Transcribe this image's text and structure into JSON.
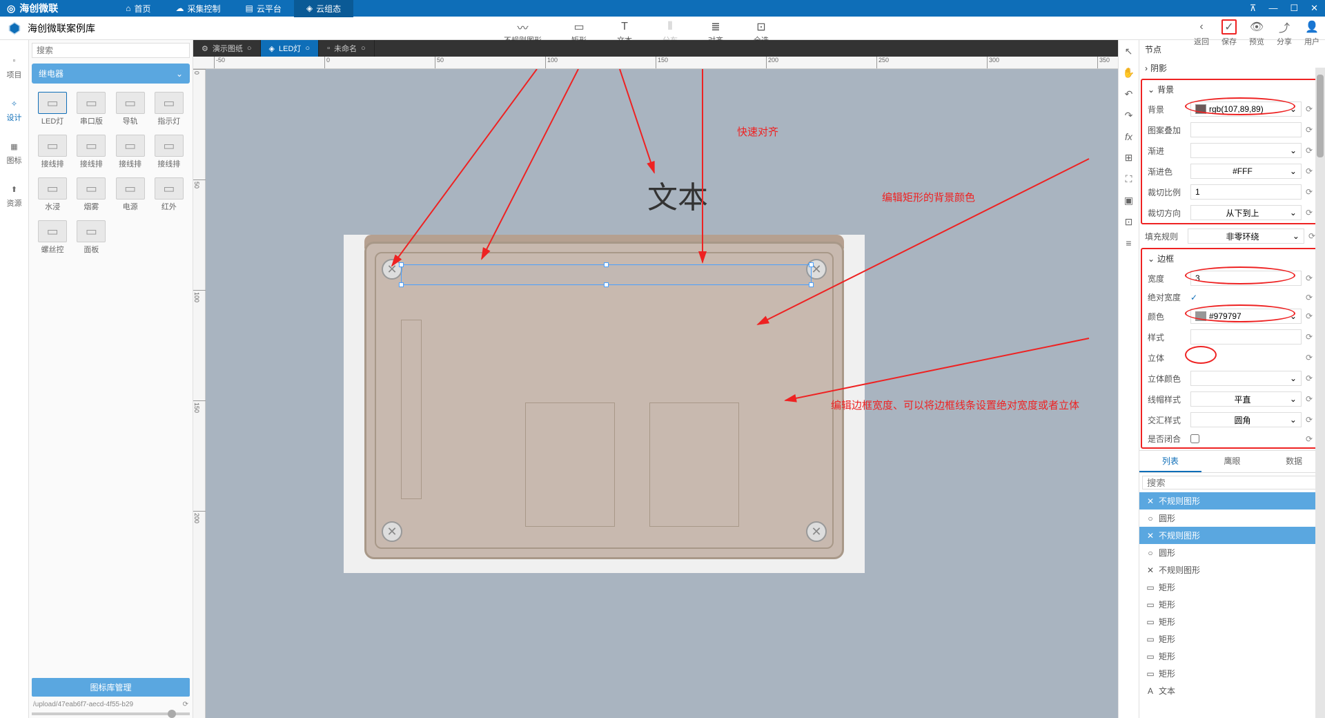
{
  "brand": "海创微联",
  "nav": [
    "首页",
    "采集控制",
    "云平台",
    "云组态"
  ],
  "nav_active": 3,
  "sub_title": "海创微联案例库",
  "left_items": [
    "项目",
    "设计",
    "图标",
    "资源"
  ],
  "left_active": 1,
  "search_placeholder": "搜索",
  "category": "继电器",
  "lib_items": [
    "LED灯",
    "串口版",
    "导轨",
    "指示灯",
    "接线排",
    "接线排",
    "接线排",
    "接线排",
    "水浸",
    "烟雾",
    "电源",
    "红外",
    "螺丝控",
    "面板"
  ],
  "lib_selected": 0,
  "lib_footer_btn": "图标库管理",
  "lib_path": "/upload/47eab6f7-aecd-4f55-b29",
  "tabs": [
    {
      "label": "演示图纸",
      "closable": true
    },
    {
      "label": "LED灯",
      "closable": true
    },
    {
      "label": "未命名",
      "closable": true
    }
  ],
  "tab_active": 1,
  "tools": [
    "不规则图形",
    "矩形",
    "文本",
    "分布",
    "对齐",
    "全选"
  ],
  "ruler_h": [
    "-50",
    "0",
    "50",
    "100",
    "150",
    "200",
    "250",
    "300",
    "350"
  ],
  "ruler_v": [
    "0",
    "50",
    "100",
    "150",
    "200"
  ],
  "text_element": "文本",
  "annot1": "快速对齐",
  "annot2": "编辑矩形的背景颜色",
  "annot3": "编辑边框宽度、可以将边框线条设置绝对宽度或者立体",
  "topright": [
    "返回",
    "保存",
    "预览",
    "分享",
    "用户"
  ],
  "topright_highlight": 1,
  "rp_node": "节点",
  "rp_shadow": "阴影",
  "rp_bg_section": "背景",
  "rp_bg": {
    "label": "背景",
    "value": "rgb(107,89,89)",
    "color": "#6b5959"
  },
  "rp_pattern": {
    "label": "图案叠加",
    "value": ""
  },
  "rp_gradient": {
    "label": "渐进",
    "value": ""
  },
  "rp_grad_color": {
    "label": "渐进色",
    "value": "#FFF"
  },
  "rp_crop_ratio": {
    "label": "裁切比例",
    "value": "1"
  },
  "rp_crop_dir": {
    "label": "裁切方向",
    "value": "从下到上"
  },
  "rp_fill_rule": {
    "label": "填充规则",
    "value": "非零环绕"
  },
  "rp_border_section": "边框",
  "rp_width": {
    "label": "宽度",
    "value": "3"
  },
  "rp_abs_width": {
    "label": "绝对宽度"
  },
  "rp_color": {
    "label": "颜色",
    "value": "#979797",
    "color": "#979797"
  },
  "rp_style": {
    "label": "样式",
    "value": ""
  },
  "rp_3d": {
    "label": "立体",
    "value": ""
  },
  "rp_3d_color": {
    "label": "立体颜色",
    "value": ""
  },
  "rp_cap": {
    "label": "线帽样式",
    "value": "平直"
  },
  "rp_join": {
    "label": "交汇样式",
    "value": "圆角"
  },
  "rp_closed": {
    "label": "是否闭合"
  },
  "rp_tabs": [
    "列表",
    "鹰眼",
    "数据"
  ],
  "rp_tab_active": 0,
  "layer_search": "搜索",
  "layers": [
    {
      "label": "不规则图形",
      "sel": true,
      "icon": "✕"
    },
    {
      "label": "圆形",
      "sel": false,
      "icon": "○"
    },
    {
      "label": "不规则图形",
      "sel": true,
      "icon": "✕"
    },
    {
      "label": "圆形",
      "sel": false,
      "icon": "○"
    },
    {
      "label": "不规则图形",
      "sel": false,
      "icon": "✕"
    },
    {
      "label": "矩形",
      "sel": false,
      "icon": "▭"
    },
    {
      "label": "矩形",
      "sel": false,
      "icon": "▭"
    },
    {
      "label": "矩形",
      "sel": false,
      "icon": "▭"
    },
    {
      "label": "矩形",
      "sel": false,
      "icon": "▭"
    },
    {
      "label": "矩形",
      "sel": false,
      "icon": "▭"
    },
    {
      "label": "矩形",
      "sel": false,
      "icon": "▭"
    },
    {
      "label": "文本",
      "sel": false,
      "icon": "A"
    }
  ]
}
